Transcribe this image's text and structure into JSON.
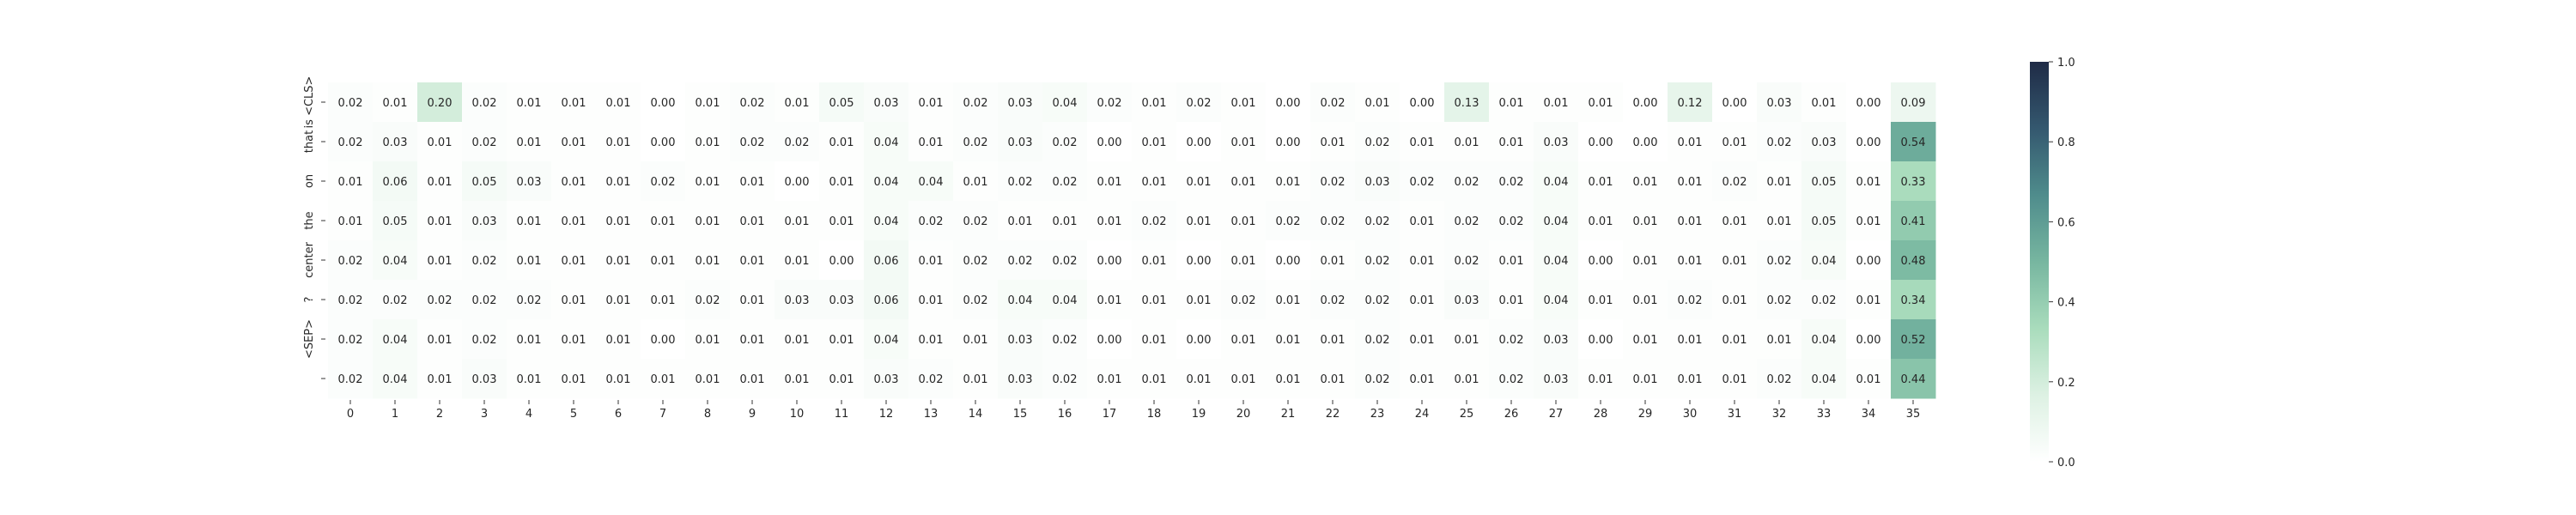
{
  "chart_data": {
    "type": "heatmap",
    "title": "",
    "xlabel": "",
    "ylabel": "",
    "x_labels": [
      "0",
      "1",
      "2",
      "3",
      "4",
      "5",
      "6",
      "7",
      "8",
      "9",
      "10",
      "11",
      "12",
      "13",
      "14",
      "15",
      "16",
      "17",
      "18",
      "19",
      "20",
      "21",
      "22",
      "23",
      "24",
      "25",
      "26",
      "27",
      "28",
      "29",
      "30",
      "31",
      "32",
      "33",
      "34",
      "35"
    ],
    "y_labels": [
      "is <CLS>",
      "that",
      "on",
      "the",
      "center",
      "?",
      "<SEP>",
      ""
    ],
    "values": [
      [
        0.02,
        0.01,
        0.2,
        0.02,
        0.01,
        0.01,
        0.01,
        0.0,
        0.01,
        0.02,
        0.01,
        0.05,
        0.03,
        0.01,
        0.02,
        0.03,
        0.04,
        0.02,
        0.01,
        0.02,
        0.01,
        0.0,
        0.02,
        0.01,
        0.0,
        0.13,
        0.01,
        0.01,
        0.01,
        0.0,
        0.12,
        0.0,
        0.03,
        0.01,
        0.0,
        0.09
      ],
      [
        0.02,
        0.03,
        0.01,
        0.02,
        0.01,
        0.01,
        0.01,
        0.0,
        0.01,
        0.02,
        0.02,
        0.01,
        0.04,
        0.01,
        0.02,
        0.03,
        0.02,
        0.0,
        0.01,
        0.0,
        0.01,
        0.0,
        0.01,
        0.02,
        0.01,
        0.01,
        0.01,
        0.03,
        0.0,
        0.0,
        0.01,
        0.01,
        0.02,
        0.03,
        0.0,
        0.54
      ],
      [
        0.01,
        0.06,
        0.01,
        0.05,
        0.03,
        0.01,
        0.01,
        0.02,
        0.01,
        0.01,
        0.0,
        0.01,
        0.04,
        0.04,
        0.01,
        0.02,
        0.02,
        0.01,
        0.01,
        0.01,
        0.01,
        0.01,
        0.02,
        0.03,
        0.02,
        0.02,
        0.02,
        0.04,
        0.01,
        0.01,
        0.01,
        0.02,
        0.01,
        0.05,
        0.01,
        0.33
      ],
      [
        0.01,
        0.05,
        0.01,
        0.03,
        0.01,
        0.01,
        0.01,
        0.01,
        0.01,
        0.01,
        0.01,
        0.01,
        0.04,
        0.02,
        0.02,
        0.01,
        0.01,
        0.01,
        0.02,
        0.01,
        0.01,
        0.02,
        0.02,
        0.02,
        0.01,
        0.02,
        0.02,
        0.04,
        0.01,
        0.01,
        0.01,
        0.01,
        0.01,
        0.05,
        0.01,
        0.41
      ],
      [
        0.02,
        0.04,
        0.01,
        0.02,
        0.01,
        0.01,
        0.01,
        0.01,
        0.01,
        0.01,
        0.01,
        0.0,
        0.06,
        0.01,
        0.02,
        0.02,
        0.02,
        0.0,
        0.01,
        0.0,
        0.01,
        0.0,
        0.01,
        0.02,
        0.01,
        0.02,
        0.01,
        0.04,
        0.0,
        0.01,
        0.01,
        0.01,
        0.02,
        0.04,
        0.0,
        0.48
      ],
      [
        0.02,
        0.02,
        0.02,
        0.02,
        0.02,
        0.01,
        0.01,
        0.01,
        0.02,
        0.01,
        0.03,
        0.03,
        0.06,
        0.01,
        0.02,
        0.04,
        0.04,
        0.01,
        0.01,
        0.01,
        0.02,
        0.01,
        0.02,
        0.02,
        0.01,
        0.03,
        0.01,
        0.04,
        0.01,
        0.01,
        0.02,
        0.01,
        0.02,
        0.02,
        0.01,
        0.34
      ],
      [
        0.02,
        0.04,
        0.01,
        0.02,
        0.01,
        0.01,
        0.01,
        0.0,
        0.01,
        0.01,
        0.01,
        0.01,
        0.04,
        0.01,
        0.01,
        0.03,
        0.02,
        0.0,
        0.01,
        0.0,
        0.01,
        0.01,
        0.01,
        0.02,
        0.01,
        0.01,
        0.02,
        0.03,
        0.0,
        0.01,
        0.01,
        0.01,
        0.01,
        0.04,
        0.0,
        0.52
      ],
      [
        0.02,
        0.04,
        0.01,
        0.03,
        0.01,
        0.01,
        0.01,
        0.01,
        0.01,
        0.01,
        0.01,
        0.01,
        0.03,
        0.02,
        0.01,
        0.03,
        0.02,
        0.01,
        0.01,
        0.01,
        0.01,
        0.01,
        0.01,
        0.02,
        0.01,
        0.01,
        0.02,
        0.03,
        0.01,
        0.01,
        0.01,
        0.01,
        0.02,
        0.04,
        0.01,
        0.44
      ]
    ],
    "value_format": "0.00",
    "colorbar": {
      "min": 0.0,
      "max": 1.0,
      "ticks": [
        "0.0",
        "0.2",
        "0.4",
        "0.6",
        "0.8",
        "1.0"
      ],
      "colors": [
        "#ffffff",
        "#ddf1e3",
        "#a9dcbc",
        "#77b6a0",
        "#4f8c8c",
        "#34586f",
        "#1f2b46"
      ]
    }
  }
}
